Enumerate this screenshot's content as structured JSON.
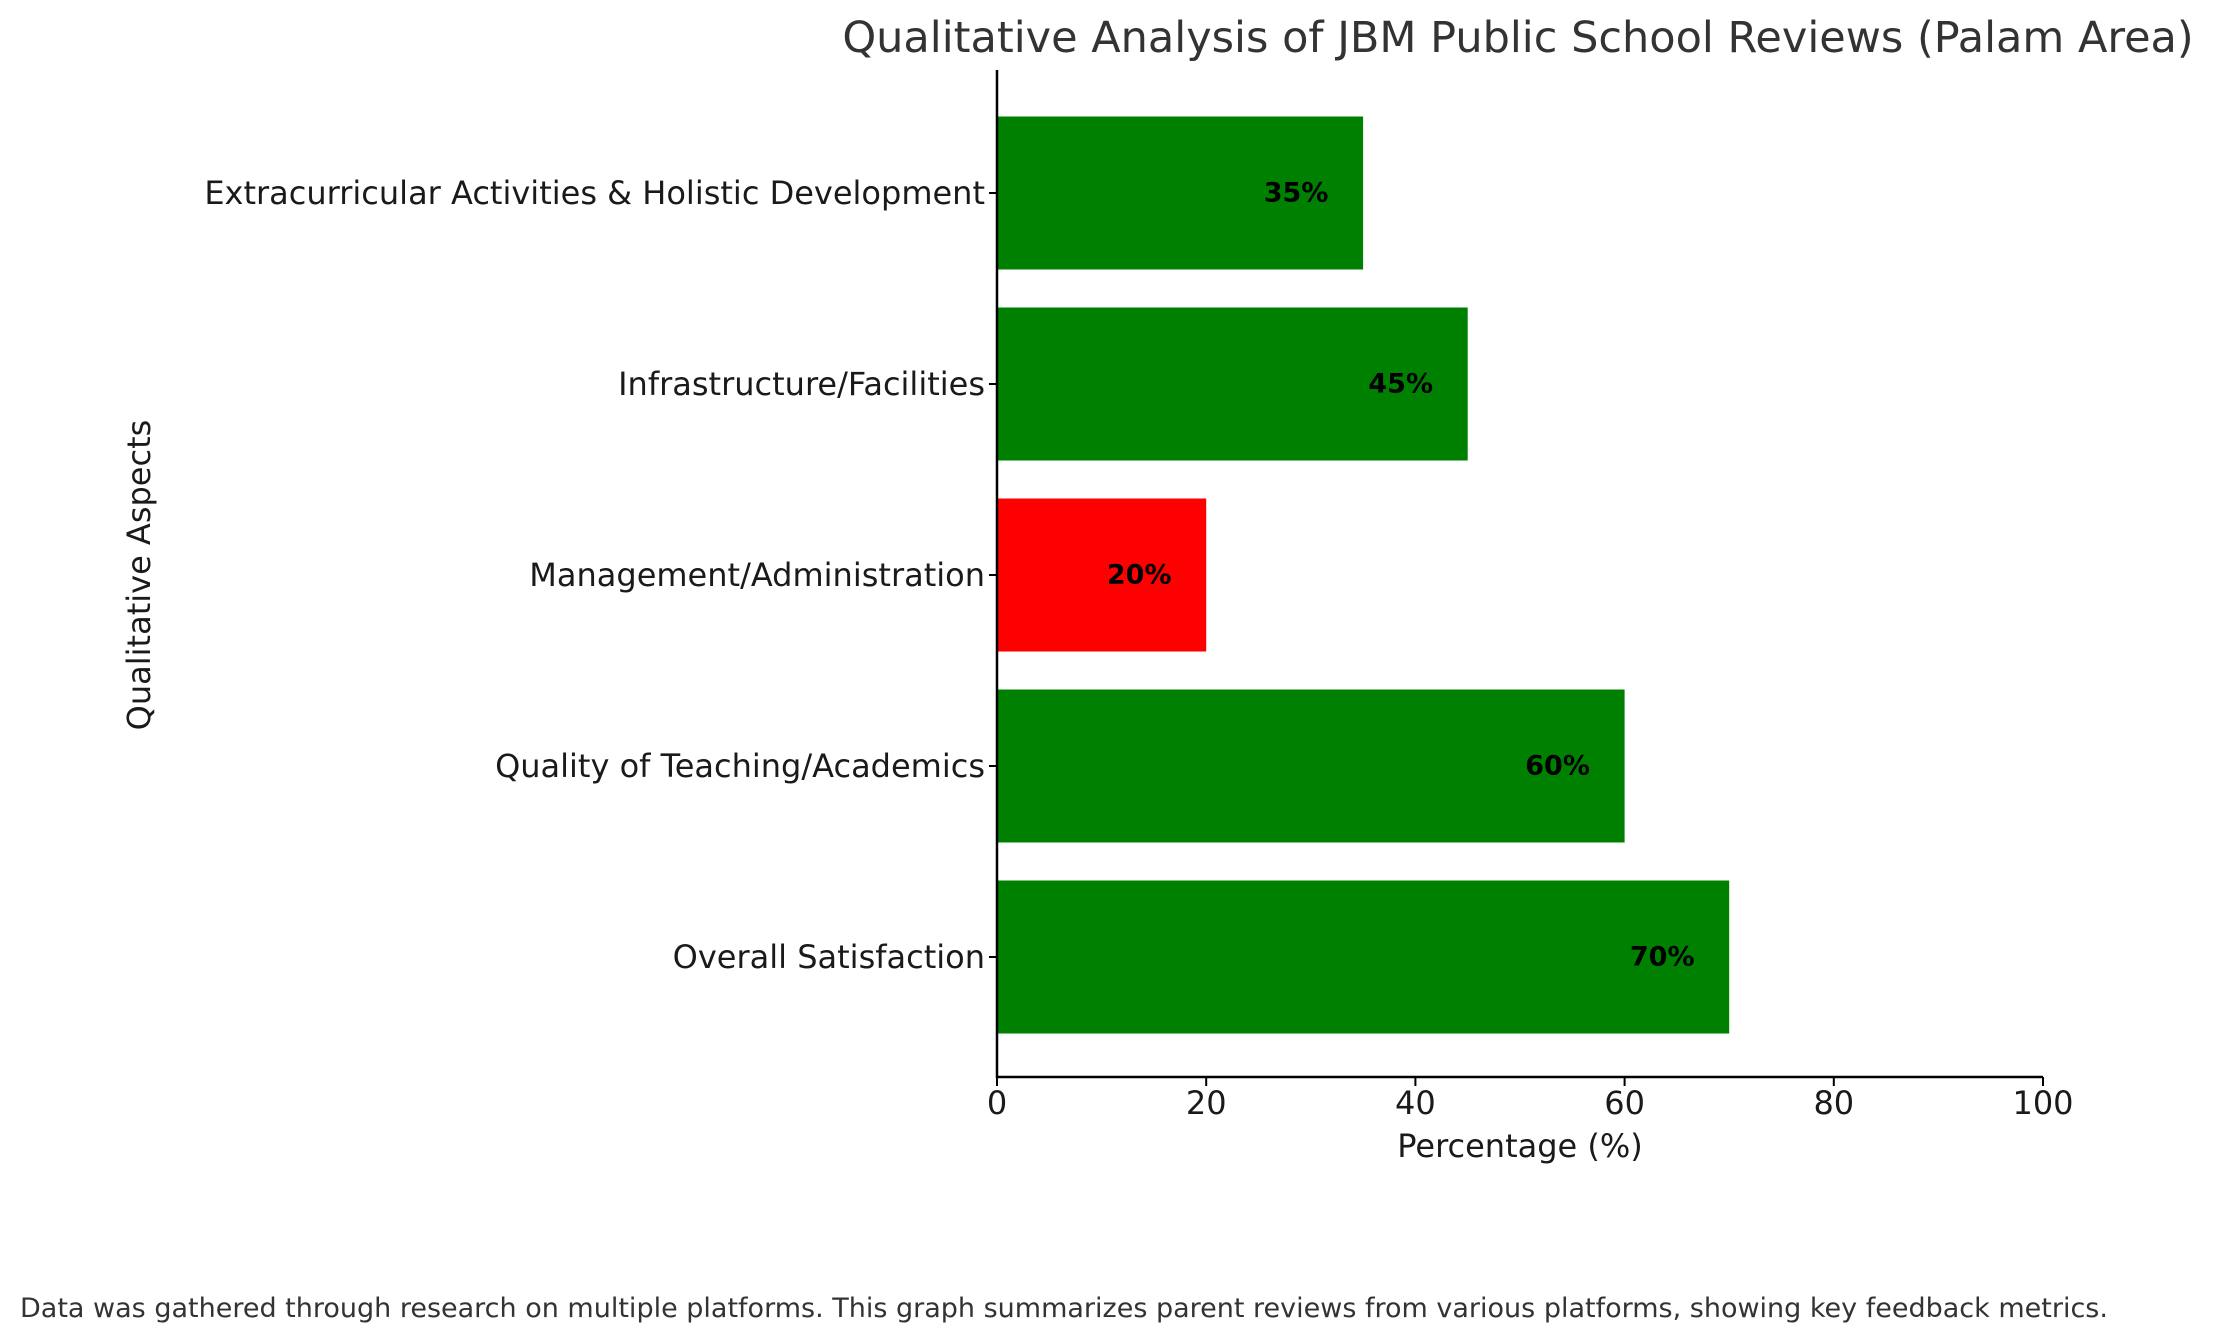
{
  "chart_data": {
    "type": "bar",
    "orientation": "horizontal",
    "title": "Qualitative Analysis of JBM Public School Reviews (Palam Area)",
    "xlabel": "Percentage (%)",
    "ylabel": "Qualitative Aspects",
    "xlim": [
      0,
      100
    ],
    "xticks": [
      "0",
      "20",
      "40",
      "60",
      "80",
      "100"
    ],
    "grid": false,
    "categories": [
      "Overall Satisfaction",
      "Quality of Teaching/Academics",
      "Management/Administration",
      "Infrastructure/Facilities",
      "Extracurricular Activities & Holistic Development"
    ],
    "values": [
      70,
      60,
      20,
      45,
      35
    ],
    "value_labels": [
      "70%",
      "60%",
      "20%",
      "45%",
      "35%"
    ],
    "colors": [
      "#008000",
      "#008000",
      "#ff0000",
      "#008000",
      "#008000"
    ],
    "footnote": "Data was gathered through research on multiple platforms. This graph summarizes parent reviews from various platforms, showing key feedback metrics."
  }
}
